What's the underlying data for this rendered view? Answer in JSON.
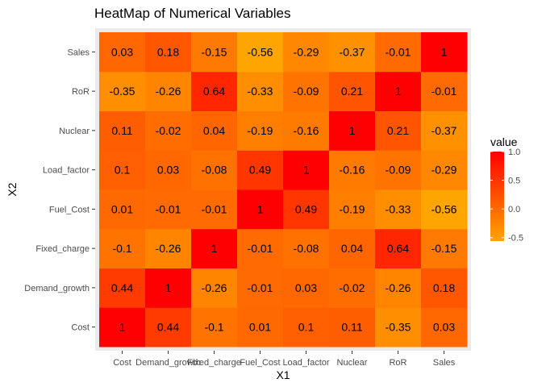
{
  "chart_data": {
    "type": "heatmap",
    "title": "HeatMap of Numerical Variables",
    "xlabel": "X1",
    "ylabel": "X2",
    "x_categories": [
      "Cost",
      "Demand_growth",
      "Fixed_charge",
      "Fuel_Cost",
      "Load_factor",
      "Nuclear",
      "RoR",
      "Sales"
    ],
    "y_categories": [
      "Cost",
      "Demand_growth",
      "Fixed_charge",
      "Fuel_Cost",
      "Load_factor",
      "Nuclear",
      "RoR",
      "Sales"
    ],
    "values": [
      [
        1,
        0.44,
        -0.1,
        0.01,
        0.1,
        0.11,
        -0.35,
        0.03
      ],
      [
        0.44,
        1,
        -0.26,
        -0.01,
        0.03,
        -0.02,
        -0.26,
        0.18
      ],
      [
        -0.1,
        -0.26,
        1,
        -0.01,
        -0.08,
        0.04,
        0.64,
        -0.15
      ],
      [
        0.01,
        -0.01,
        -0.01,
        1,
        0.49,
        -0.19,
        -0.33,
        -0.56
      ],
      [
        0.1,
        0.03,
        -0.08,
        0.49,
        1,
        -0.16,
        -0.09,
        -0.29
      ],
      [
        0.11,
        -0.02,
        0.04,
        -0.19,
        -0.16,
        1,
        0.21,
        -0.37
      ],
      [
        -0.35,
        -0.26,
        0.64,
        -0.33,
        -0.09,
        0.21,
        1,
        -0.01
      ],
      [
        0.03,
        0.18,
        -0.15,
        -0.56,
        -0.29,
        -0.37,
        -0.01,
        1
      ]
    ],
    "value_labels": [
      [
        "1",
        "0.44",
        "-0.1",
        "0.01",
        "0.1",
        "0.11",
        "-0.35",
        "0.03"
      ],
      [
        "0.44",
        "1",
        "-0.26",
        "-0.01",
        "0.03",
        "-0.02",
        "-0.26",
        "0.18"
      ],
      [
        "-0.1",
        "-0.26",
        "1",
        "-0.01",
        "-0.08",
        "0.04",
        "0.64",
        "-0.15"
      ],
      [
        "0.01",
        "-0.01",
        "-0.01",
        "1",
        "0.49",
        "-0.19",
        "-0.33",
        "-0.56"
      ],
      [
        "0.1",
        "0.03",
        "-0.08",
        "0.49",
        "1",
        "-0.16",
        "-0.09",
        "-0.29"
      ],
      [
        "0.11",
        "-0.02",
        "0.04",
        "-0.19",
        "-0.16",
        "1",
        "0.21",
        "-0.37"
      ],
      [
        "-0.35",
        "-0.26",
        "0.64",
        "-0.33",
        "-0.09",
        "0.21",
        "1",
        "-0.01"
      ],
      [
        "0.03",
        "0.18",
        "-0.15",
        "-0.56",
        "-0.29",
        "-0.37",
        "-0.01",
        "1"
      ]
    ],
    "legend": {
      "title": "value",
      "ticks": [
        1.0,
        0.5,
        0.0,
        -0.5
      ],
      "tick_labels": [
        "1.0",
        "0.5",
        "0.0",
        "-0.5"
      ],
      "range": [
        -0.56,
        1
      ],
      "low_color": "#ffa500",
      "high_color": "#ff0000",
      "placement": "right"
    },
    "panel_background": "#ebebeb",
    "grid": false
  }
}
